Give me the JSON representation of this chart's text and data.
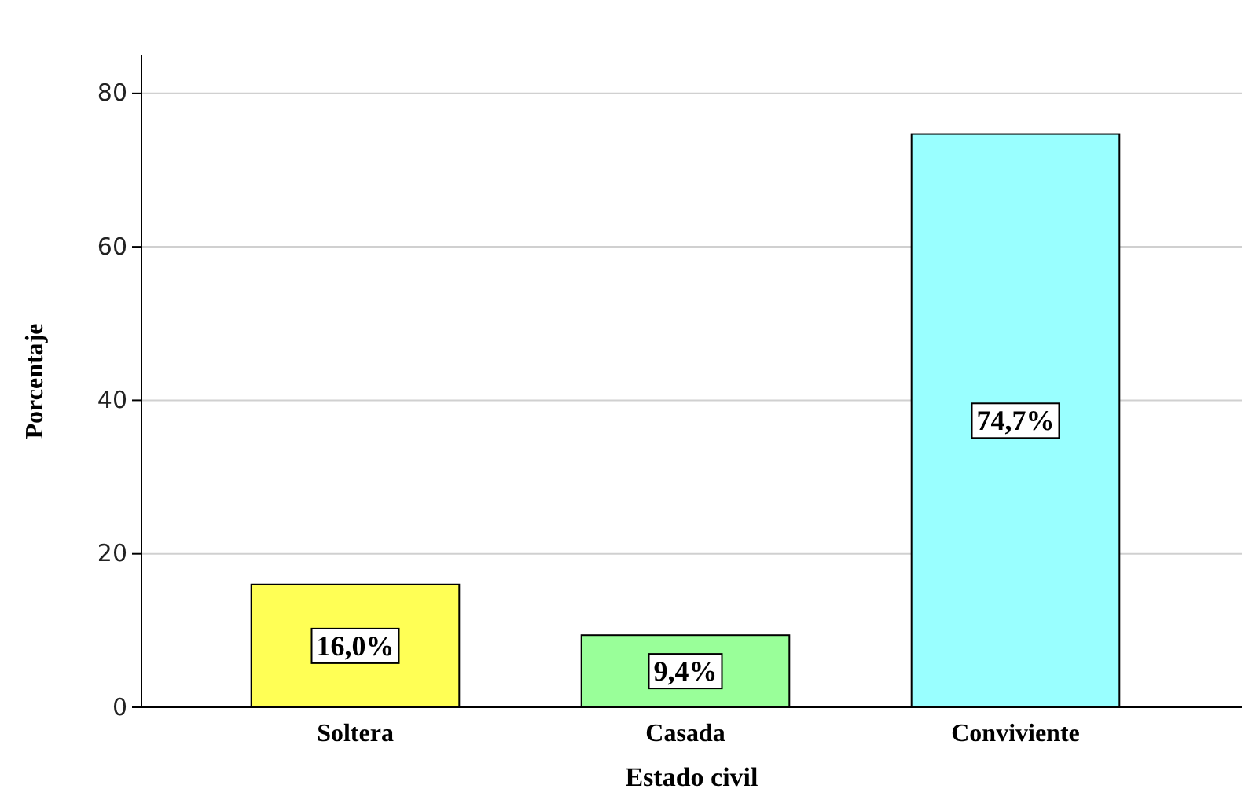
{
  "chart_data": {
    "type": "bar",
    "xlabel": "Estado civil",
    "ylabel": "Porcentaje",
    "categories": [
      "Soltera",
      "Casada",
      "Conviviente"
    ],
    "values": [
      16.0,
      9.4,
      74.7
    ],
    "colors": [
      "#ffff55",
      "#99ff99",
      "#99ffff"
    ],
    "value_labels": [
      "16,0%",
      "9,4%",
      "74,7%"
    ],
    "ylim": [
      0,
      85
    ],
    "yticks": [
      0,
      20,
      40,
      60,
      80
    ],
    "grid": "y"
  }
}
